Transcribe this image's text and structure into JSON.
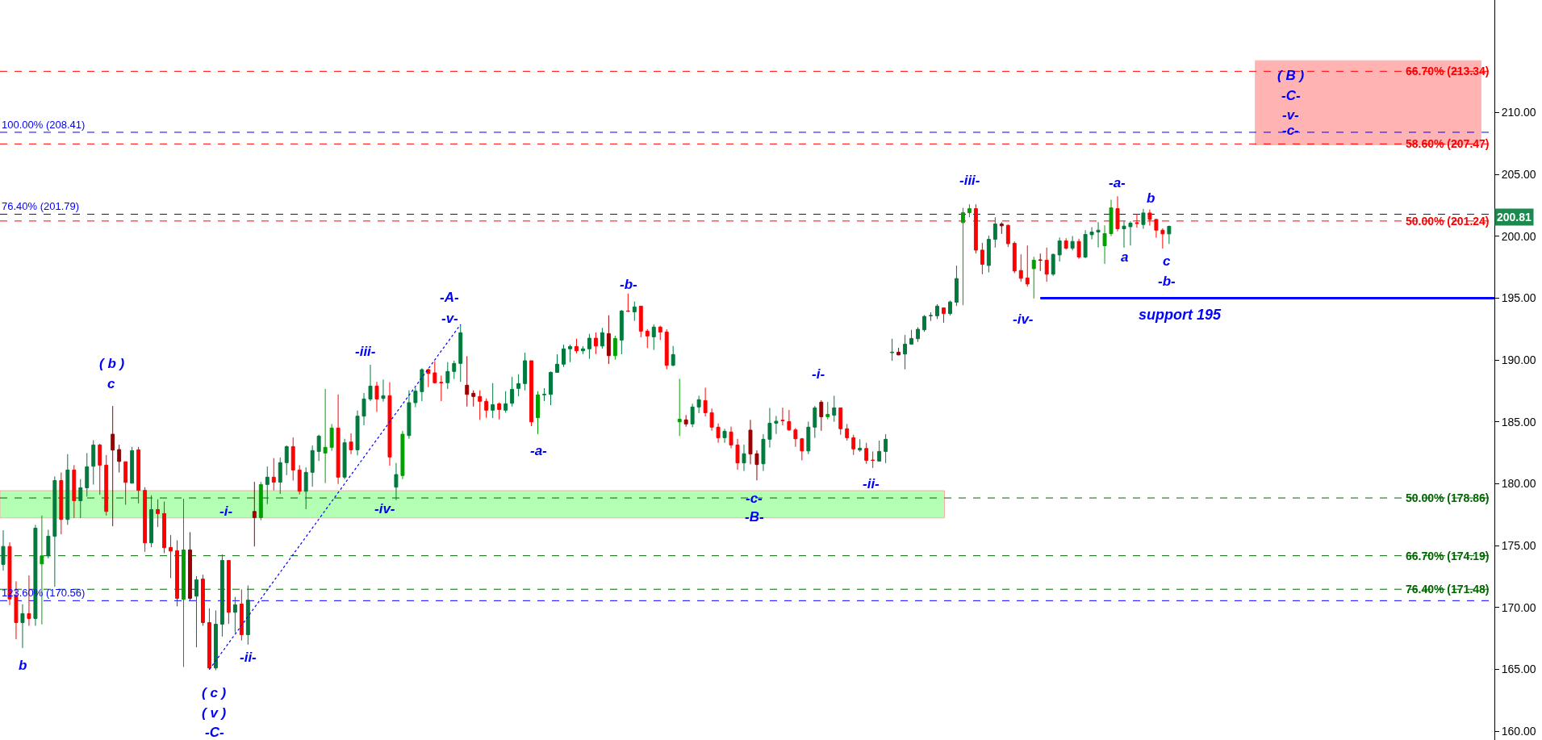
{
  "chart_data": {
    "type": "candlestick",
    "categories": [
      null,
      null,
      null,
      null,
      null,
      null,
      null,
      null,
      null,
      null,
      null,
      null,
      null,
      null,
      null,
      null,
      null,
      null,
      null,
      null,
      null,
      null,
      null,
      null,
      null,
      null,
      null,
      null,
      null,
      null,
      null,
      null,
      null,
      null,
      null,
      null,
      null,
      null,
      null,
      null,
      null,
      null,
      null,
      null,
      null,
      null,
      null,
      null,
      null,
      null,
      null,
      null,
      null,
      null,
      null,
      null,
      null,
      null,
      null,
      null,
      null,
      null,
      null,
      null,
      null,
      null,
      null,
      null,
      null,
      null,
      null,
      null,
      null,
      null,
      null,
      null,
      null,
      null,
      null,
      null,
      null,
      null,
      null,
      null,
      null,
      null,
      null,
      null,
      null,
      null,
      null,
      null,
      null,
      null,
      null,
      null,
      null,
      null,
      null,
      null,
      null,
      null,
      null,
      null,
      null,
      null,
      null,
      null,
      null,
      null,
      null,
      null,
      null,
      null,
      null,
      null,
      null,
      null,
      null,
      null,
      null,
      null,
      null,
      null,
      null,
      null,
      null,
      null,
      null,
      null,
      null,
      null,
      null,
      null,
      null,
      null,
      null,
      null,
      null,
      null,
      null,
      null,
      null,
      null,
      null,
      null,
      null,
      null,
      null,
      null,
      null,
      null,
      null,
      null,
      null,
      null,
      null,
      null,
      null,
      null,
      null,
      null,
      null,
      null,
      null,
      null,
      null,
      null,
      null,
      null,
      null,
      null,
      null,
      null,
      null,
      null,
      null,
      null,
      null,
      null,
      null,
      null,
      null,
      null,
      null,
      null,
      null,
      null,
      null,
      null,
      null,
      null,
      null,
      null,
      null,
      null,
      null,
      null,
      null,
      null,
      null,
      null,
      null,
      null,
      null,
      null,
      null,
      null,
      null,
      null,
      null,
      null,
      null,
      null,
      null,
      null,
      null,
      null,
      null,
      null,
      null,
      null,
      null,
      null,
      null,
      null,
      null,
      null,
      null,
      null,
      null,
      null
    ],
    "ohlc": [
      [
        173.49,
        176.25,
        172.99,
        174.94
      ],
      [
        174.94,
        175.27,
        170.2,
        170.7
      ],
      [
        170.97,
        172.12,
        167.44,
        168.79
      ],
      [
        168.79,
        170.27,
        166.73,
        169.51
      ],
      [
        169.51,
        172.6,
        168.53,
        169.12
      ],
      [
        169.12,
        176.68,
        168.53,
        176.42
      ],
      [
        173.53,
        177.44,
        168.64,
        174.18
      ],
      [
        174.18,
        176.29,
        173.97,
        175.77
      ],
      [
        175.77,
        180.6,
        171.68,
        180.27
      ],
      [
        180.27,
        180.92,
        175.92,
        177.12
      ],
      [
        177.12,
        182.4,
        176.68,
        181.12
      ],
      [
        181.12,
        181.51,
        177.23,
        178.64
      ],
      [
        178.64,
        180.38,
        177.23,
        179.68
      ],
      [
        179.68,
        182.49,
        178.97,
        181.38
      ],
      [
        181.42,
        183.53,
        179.94,
        183.14
      ],
      [
        183.14,
        183.25,
        179.12,
        181.51
      ],
      [
        181.51,
        182.33,
        177.44,
        177.77
      ],
      [
        184.01,
        186.29,
        176.57,
        182.73
      ],
      [
        182.77,
        183.16,
        180.92,
        181.81
      ],
      [
        181.79,
        181.79,
        178.31,
        180.12
      ],
      [
        180.05,
        182.99,
        180.05,
        182.68
      ],
      [
        182.75,
        182.99,
        178.42,
        179.47
      ],
      [
        179.47,
        179.73,
        174.51,
        175.23
      ],
      [
        175.23,
        179.07,
        174.88,
        177.92
      ],
      [
        177.92,
        178.75,
        176.51,
        177.6
      ],
      [
        177.6,
        178.57,
        174.4,
        174.84
      ],
      [
        174.86,
        175.86,
        172.38,
        174.57
      ],
      [
        174.6,
        175.44,
        170.1,
        170.75
      ],
      [
        170.66,
        178.79,
        165.2,
        174.66
      ],
      [
        174.66,
        176.1,
        170.6,
        170.75
      ],
      [
        170.92,
        172.55,
        166.79,
        172.25
      ],
      [
        172.31,
        172.66,
        168.53,
        168.79
      ],
      [
        168.79,
        169.94,
        164.99,
        165.12
      ],
      [
        165.12,
        169.77,
        164.94,
        168.66
      ],
      [
        168.66,
        174.29,
        167.66,
        173.81
      ],
      [
        173.81,
        173.81,
        168.68,
        169.62
      ],
      [
        169.62,
        170.86,
        167.99,
        170.23
      ],
      [
        170.29,
        171.47,
        167.34,
        167.81
      ],
      [
        167.81,
        171.79,
        167.01,
        170.6
      ],
      [
        177.77,
        180.16,
        174.94,
        177.27
      ],
      [
        177.27,
        180.16,
        177.05,
        179.94
      ],
      [
        179.95,
        181.4,
        178.36,
        180.54
      ],
      [
        180.54,
        182.08,
        179.47,
        180.14
      ],
      [
        180.14,
        182.12,
        179.19,
        181.71
      ],
      [
        181.71,
        183.1,
        180.71,
        183.01
      ],
      [
        183.01,
        183.75,
        180.27,
        181.12
      ],
      [
        181.12,
        181.51,
        179.14,
        179.4
      ],
      [
        179.4,
        181.32,
        177.95,
        180.93
      ],
      [
        180.93,
        183.1,
        179.77,
        182.69
      ],
      [
        182.62,
        183.97,
        181.84,
        183.86
      ],
      [
        182.49,
        187.67,
        180.06,
        182.95
      ],
      [
        182.95,
        184.84,
        182.67,
        184.51
      ],
      [
        184.51,
        187.23,
        179.99,
        180.54
      ],
      [
        180.54,
        183.64,
        180.38,
        183.32
      ],
      [
        183.38,
        184.08,
        182.4,
        182.75
      ],
      [
        182.75,
        185.93,
        182.3,
        185.47
      ],
      [
        185.47,
        187.34,
        184.73,
        186.86
      ],
      [
        186.86,
        189.62,
        186.69,
        187.9
      ],
      [
        187.9,
        188.25,
        185.82,
        186.86
      ],
      [
        186.9,
        188.43,
        186.64,
        187.12
      ],
      [
        187.12,
        188.21,
        181.47,
        182.17
      ],
      [
        179.73,
        181.69,
        178.69,
        180.75
      ],
      [
        180.67,
        184.29,
        180.38,
        184.01
      ],
      [
        183.9,
        187.56,
        183.64,
        186.56
      ],
      [
        186.56,
        187.77,
        186.19,
        187.49
      ],
      [
        187.45,
        189.34,
        186.69,
        189.23
      ],
      [
        189.23,
        189.3,
        187.82,
        188.93
      ],
      [
        188.97,
        189.9,
        188.1,
        188.17
      ],
      [
        188.2,
        188.75,
        186.69,
        188.17
      ],
      [
        188.17,
        189.84,
        187.67,
        189.08
      ],
      [
        189.08,
        189.95,
        188.47,
        189.73
      ],
      [
        189.73,
        192.88,
        188.25,
        192.21
      ],
      [
        187.97,
        190.32,
        186.25,
        187.23
      ],
      [
        187.32,
        187.56,
        186.25,
        187.06
      ],
      [
        187.06,
        187.56,
        185.17,
        186.67
      ],
      [
        186.67,
        186.9,
        185.34,
        185.95
      ],
      [
        185.95,
        188.14,
        185.32,
        186.4
      ],
      [
        186.47,
        186.58,
        185.21,
        186.01
      ],
      [
        185.95,
        187.49,
        185.75,
        186.47
      ],
      [
        186.51,
        188.64,
        186.25,
        187.64
      ],
      [
        187.71,
        188.86,
        187.08,
        188.1
      ],
      [
        188.1,
        190.6,
        187.56,
        189.95
      ],
      [
        189.95,
        189.95,
        184.67,
        185.01
      ],
      [
        185.34,
        187.49,
        184.01,
        187.19
      ],
      [
        187.2,
        187.73,
        186.69,
        187.23
      ],
      [
        187.23,
        189.08,
        186.36,
        189.01
      ],
      [
        189.01,
        190.47,
        188.97,
        189.67
      ],
      [
        189.67,
        191.25,
        189.45,
        190.91
      ],
      [
        190.91,
        191.25,
        189.84,
        191.1
      ],
      [
        191.1,
        191.73,
        190.54,
        190.75
      ],
      [
        190.75,
        191.12,
        190.49,
        190.91
      ],
      [
        190.91,
        192.12,
        190.1,
        191.77
      ],
      [
        191.77,
        192.23,
        190.49,
        191.14
      ],
      [
        191.14,
        192.6,
        190.93,
        192.21
      ],
      [
        192.14,
        193.62,
        189.69,
        190.36
      ],
      [
        190.36,
        191.97,
        190.04,
        191.75
      ],
      [
        191.62,
        194.04,
        190.47,
        193.97
      ],
      [
        193.97,
        195.38,
        193.9,
        193.95
      ],
      [
        193.9,
        194.73,
        193.17,
        194.3
      ],
      [
        194.36,
        194.36,
        191.84,
        192.34
      ],
      [
        192.34,
        192.51,
        190.97,
        191.95
      ],
      [
        191.88,
        192.88,
        190.82,
        192.67
      ],
      [
        192.67,
        192.78,
        191.62,
        192.27
      ],
      [
        192.27,
        192.49,
        189.25,
        189.58
      ],
      [
        189.58,
        191.14,
        189.51,
        190.45
      ],
      [
        185.01,
        188.49,
        183.86,
        185.23
      ],
      [
        185.17,
        185.56,
        184.62,
        184.84
      ],
      [
        184.84,
        186.47,
        184.58,
        186.21
      ],
      [
        186.21,
        187.12,
        185.71,
        186.8
      ],
      [
        186.73,
        187.77,
        185.45,
        185.75
      ],
      [
        185.75,
        186.08,
        184.3,
        184.58
      ],
      [
        184.58,
        184.88,
        183.32,
        183.73
      ],
      [
        183.73,
        184.45,
        183.32,
        184.25
      ],
      [
        184.19,
        184.62,
        182.88,
        183.14
      ],
      [
        183.14,
        183.64,
        181.14,
        181.69
      ],
      [
        181.69,
        183.17,
        181.04,
        182.43
      ],
      [
        184.34,
        185.17,
        181.58,
        182.41
      ],
      [
        182.43,
        182.71,
        180.28,
        181.56
      ],
      [
        181.62,
        184.01,
        181.04,
        183.6
      ],
      [
        183.6,
        186.14,
        182.93,
        184.9
      ],
      [
        184.9,
        185.49,
        184.03,
        185.06
      ],
      [
        185.14,
        186.16,
        184.73,
        185.1
      ],
      [
        185.03,
        185.97,
        184.29,
        184.36
      ],
      [
        184.36,
        184.51,
        182.99,
        183.64
      ],
      [
        183.64,
        183.71,
        181.9,
        182.66
      ],
      [
        182.66,
        185.03,
        182.4,
        184.58
      ],
      [
        184.58,
        186.29,
        183.71,
        186.14
      ],
      [
        186.6,
        186.75,
        184.29,
        185.42
      ],
      [
        185.42,
        186.62,
        185.21,
        185.62
      ],
      [
        185.55,
        187.12,
        185.01,
        186.14
      ],
      [
        186.14,
        186.14,
        183.97,
        184.45
      ],
      [
        184.45,
        184.84,
        183.49,
        183.73
      ],
      [
        183.73,
        183.97,
        182.34,
        182.82
      ],
      [
        182.73,
        183.6,
        182.6,
        182.88
      ],
      [
        182.86,
        183.32,
        181.62,
        181.9
      ],
      [
        181.92,
        182.62,
        181.29,
        181.9
      ],
      [
        181.84,
        183.49,
        181.8,
        182.62
      ],
      [
        182.62,
        184.01,
        181.68,
        183.6
      ],
      [
        190.6,
        191.73,
        189.94,
        190.64
      ],
      [
        190.64,
        190.99,
        190.38,
        190.42
      ],
      [
        190.49,
        192.03,
        189.25,
        191.29
      ],
      [
        191.29,
        192.45,
        191.25,
        191.75
      ],
      [
        191.73,
        192.66,
        191.47,
        192.49
      ],
      [
        192.45,
        193.64,
        192.29,
        193.53
      ],
      [
        193.58,
        193.86,
        193.16,
        193.6
      ],
      [
        193.58,
        194.51,
        193.32,
        194.36
      ],
      [
        194.22,
        194.26,
        193.02,
        193.76
      ],
      [
        193.76,
        194.81,
        193.61,
        194.7
      ],
      [
        194.68,
        197.63,
        194.37,
        196.59
      ],
      [
        201.11,
        202.3,
        194.44,
        201.91
      ],
      [
        201.91,
        202.59,
        201.54,
        202.24
      ],
      [
        202.24,
        202.59,
        198.61,
        198.89
      ],
      [
        198.89,
        199.48,
        196.94,
        197.74
      ],
      [
        197.65,
        200.07,
        197.09,
        199.76
      ],
      [
        199.76,
        201.54,
        199.09,
        201.0
      ],
      [
        201.0,
        201.15,
        200.2,
        200.85
      ],
      [
        200.89,
        200.96,
        199.15,
        199.41
      ],
      [
        199.44,
        199.59,
        197.02,
        197.2
      ],
      [
        197.24,
        198.54,
        196.33,
        196.61
      ],
      [
        196.63,
        199.26,
        195.94,
        196.15
      ],
      [
        197.39,
        198.35,
        194.98,
        198.07
      ],
      [
        198.1,
        198.61,
        197.2,
        198.07
      ],
      [
        198.07,
        199.09,
        196.33,
        196.94
      ],
      [
        196.94,
        198.61,
        196.81,
        198.54
      ],
      [
        198.5,
        199.91,
        197.96,
        199.63
      ],
      [
        199.63,
        199.85,
        198.93,
        199.04
      ],
      [
        199.04,
        200.02,
        198.87,
        199.59
      ],
      [
        199.59,
        199.81,
        198.18,
        198.33
      ],
      [
        198.33,
        200.5,
        198.24,
        200.15
      ],
      [
        200.13,
        200.74,
        199.76,
        200.35
      ],
      [
        200.35,
        201.15,
        199.11,
        200.5
      ],
      [
        199.24,
        200.89,
        197.78,
        200.22
      ],
      [
        200.22,
        202.96,
        200.02,
        202.3
      ],
      [
        202.24,
        203.24,
        200.41,
        200.61
      ],
      [
        200.61,
        201.22,
        199.09,
        200.83
      ],
      [
        200.78,
        201.22,
        199.26,
        201.07
      ],
      [
        201.1,
        201.8,
        200.7,
        201.05
      ],
      [
        200.96,
        202.22,
        200.61,
        201.89
      ],
      [
        201.89,
        202.17,
        200.87,
        201.37
      ],
      [
        201.37,
        201.41,
        199.89,
        200.5
      ],
      [
        200.5,
        200.65,
        199.02,
        200.2
      ],
      [
        200.2,
        200.87,
        199.39,
        200.81
      ],
      null,
      null,
      null,
      null,
      null,
      null,
      null,
      null,
      null,
      null,
      null,
      null,
      null,
      null,
      null,
      null,
      null,
      null,
      null,
      null,
      null,
      null,
      null,
      null,
      null,
      null,
      null,
      null,
      null,
      null,
      null,
      null,
      null,
      null,
      null,
      null,
      null,
      null,
      null,
      null,
      null,
      null,
      null,
      null,
      null,
      null,
      null,
      null,
      null,
      null
    ],
    "colors": [
      "#007a3d",
      "#ff0000",
      "#ff0000",
      "#007a3d",
      "#ff0000",
      "#007a3d",
      "#00a000",
      "#007a3d",
      "#007a3d",
      "#ff0000",
      "#007a3d",
      "#ff0000",
      "#007a3d",
      "#007a3d",
      "#007a3d",
      "#ff0000",
      "#ff0000",
      "#990000",
      "#990000",
      "#ff0000",
      "#007a3d",
      "#ff0000",
      "#ff0000",
      "#007a3d",
      "#ff0000",
      "#ff0000",
      "#ff0000",
      "#ff0000",
      "#00a000",
      "#990000",
      "#007a3d",
      "#ff0000",
      "#ff0000",
      "#007a3d",
      "#007a3d",
      "#ff0000",
      "#007a3d",
      "#ff0000",
      "#007a3d",
      "#990000",
      "#00a000",
      "#007a3d",
      "#ff0000",
      "#007a3d",
      "#007a3d",
      "#ff0000",
      "#ff0000",
      "#007a3d",
      "#007a3d",
      "#007a3d",
      "#00a000",
      "#00a000",
      "#ff0000",
      "#007a3d",
      "#ff0000",
      "#007a3d",
      "#007a3d",
      "#007a3d",
      "#ff0000",
      "#007a3d",
      "#ff0000",
      "#007a3d",
      "#00a000",
      "#007a3d",
      "#007a3d",
      "#007a3d",
      "#ff0000",
      "#ff0000",
      "#ff0000",
      "#007a3d",
      "#007a3d",
      "#007a3d",
      "#990000",
      "#990000",
      "#ff0000",
      "#ff0000",
      "#007a3d",
      "#ff0000",
      "#007a3d",
      "#007a3d",
      "#007a3d",
      "#007a3d",
      "#ff0000",
      "#00a000",
      "#007a3d",
      "#007a3d",
      "#007a3d",
      "#007a3d",
      "#007a3d",
      "#ff0000",
      "#007a3d",
      "#007a3d",
      "#ff0000",
      "#007a3d",
      "#990000",
      "#00a000",
      "#007a3d",
      "#ff0000",
      "#007a3d",
      "#ff0000",
      "#ff0000",
      "#007a3d",
      "#ff0000",
      "#ff0000",
      "#007a3d",
      "#00a000",
      "#990000",
      "#007a3d",
      "#007a3d",
      "#ff0000",
      "#ff0000",
      "#ff0000",
      "#007a3d",
      "#ff0000",
      "#ff0000",
      "#007a3d",
      "#990000",
      "#990000",
      "#007a3d",
      "#007a3d",
      "#007a3d",
      "#ff0000",
      "#ff0000",
      "#ff0000",
      "#ff0000",
      "#007a3d",
      "#007a3d",
      "#990000",
      "#00a000",
      "#007a3d",
      "#ff0000",
      "#ff0000",
      "#ff0000",
      "#007a3d",
      "#ff0000",
      "#ff0000",
      "#007a3d",
      "#007a3d",
      "#007a3d",
      "#990000",
      "#007a3d",
      "#007a3d",
      "#007a3d",
      "#007a3d",
      "#007a3d",
      "#007a3d",
      "#ff0000",
      "#007a3d",
      "#007a3d",
      "#00a000",
      "#00a000",
      "#ff0000",
      "#ff0000",
      "#007a3d",
      "#007a3d",
      "#990000",
      "#ff0000",
      "#ff0000",
      "#ff0000",
      "#ff0000",
      "#00a000",
      "#990000",
      "#ff0000",
      "#007a3d",
      "#007a3d",
      "#ff0000",
      "#007a3d",
      "#ff0000",
      "#007a3d",
      "#007a3d",
      "#007a3d",
      "#00a000",
      "#00a000",
      "#ff0000",
      "#007a3d",
      "#007a3d",
      "#ff0000",
      "#007a3d",
      "#ff0000",
      "#ff0000",
      "#ff0000",
      "#007a3d",
      null,
      null,
      null,
      null,
      null,
      null,
      null,
      null,
      null,
      null,
      null,
      null,
      null,
      null,
      null,
      null,
      null,
      null,
      null,
      null,
      null,
      null,
      null,
      null,
      null,
      null,
      null,
      null,
      null,
      null,
      null,
      null,
      null,
      null,
      null,
      null,
      null,
      null,
      null,
      null,
      null,
      null,
      null,
      null,
      null,
      null,
      null,
      null,
      null,
      null
    ],
    "series": [
      {
        "type": "line",
        "values": [
          null,
          null,
          null,
          null,
          null,
          null,
          null,
          null,
          null,
          null,
          null,
          null,
          null,
          null,
          null,
          null,
          null,
          null,
          null,
          null,
          null,
          null,
          null,
          null,
          null,
          null,
          null,
          null,
          null,
          null,
          null,
          null,
          164.99,
          null,
          null,
          null,
          null,
          null,
          null,
          null,
          null,
          null,
          null,
          null,
          null,
          null,
          null,
          null,
          null,
          null,
          null,
          null,
          null,
          null,
          null,
          null,
          null,
          null,
          null,
          null,
          null,
          null,
          null,
          null,
          null,
          null,
          null,
          null,
          null,
          null,
          null,
          192.88,
          null,
          null,
          null,
          null,
          null,
          null,
          null,
          null,
          null,
          null,
          null,
          null,
          null,
          null,
          null,
          null,
          null,
          null,
          null,
          null,
          null,
          null,
          null,
          null,
          null,
          null,
          null,
          null,
          null,
          null,
          null,
          null,
          null,
          null,
          null,
          null,
          null,
          null,
          null,
          null,
          null,
          null,
          null,
          null,
          null,
          null,
          null,
          null,
          null,
          null,
          null,
          null,
          null,
          null,
          null,
          null,
          null,
          null,
          null,
          null,
          null,
          null,
          null,
          null,
          null,
          null,
          null,
          null,
          null,
          null,
          null,
          null,
          null,
          null,
          null,
          null,
          null,
          null,
          null,
          null,
          null,
          null,
          null,
          null,
          null,
          null,
          null,
          null,
          null,
          null,
          null,
          null,
          null,
          null,
          null,
          null,
          null,
          null,
          null,
          null,
          null,
          null,
          null,
          null,
          null,
          null,
          null,
          null,
          null,
          null,
          null,
          null,
          null,
          null,
          null,
          null,
          null,
          null,
          null,
          null,
          null,
          null,
          null,
          null,
          null,
          null,
          null,
          null,
          null,
          null,
          null,
          null,
          null,
          null,
          null,
          null,
          null,
          null,
          null,
          null,
          null,
          null,
          null,
          null,
          null,
          null,
          null,
          null,
          null,
          null,
          null,
          null,
          null,
          null,
          null,
          null,
          null,
          null,
          null,
          null
        ],
        "color": "#0000ff",
        "line_style": "dotted"
      }
    ],
    "ylim": [
      159.3,
      219.1
    ],
    "yticks": [
      {
        "value": 160,
        "label": "160.00"
      },
      {
        "value": 165,
        "label": "165.00"
      },
      {
        "value": 170,
        "label": "170.00"
      },
      {
        "value": 175,
        "label": "175.00"
      },
      {
        "value": 180,
        "label": "180.00"
      },
      {
        "value": 185,
        "label": "185.00"
      },
      {
        "value": 190,
        "label": "190.00"
      },
      {
        "value": 195,
        "label": "195.00"
      },
      {
        "value": 200,
        "label": "200.00"
      },
      {
        "value": 205,
        "label": "205.00"
      },
      {
        "value": 210,
        "label": "210.00"
      }
    ],
    "tick_labels": "y",
    "ref_lines": [
      {
        "axis": "y",
        "value": 195,
        "label": "support 195",
        "color": "#0000ff",
        "line_style": "solid"
      },
      {
        "axis": "y",
        "value": 213.34,
        "label": "66.70% (213.34)",
        "color": "#ff0000",
        "line_style": "dashed"
      },
      {
        "axis": "y",
        "value": 207.47,
        "label": "58.60% (207.47)",
        "color": "#ff0000",
        "line_style": "dashed"
      },
      {
        "axis": "y",
        "value": 201.24,
        "label": "50.00% (201.24)",
        "color": "#ff0000",
        "line_style": "dashed"
      },
      {
        "axis": "y",
        "value": 178.86,
        "label": "50.00% (178.86)",
        "color": "#006600",
        "line_style": "dashed"
      },
      {
        "axis": "y",
        "value": 174.19,
        "label": "66.70% (174.19)",
        "color": "#006600",
        "line_style": "dashed"
      },
      {
        "axis": "y",
        "value": 171.48,
        "label": "76.40% (171.48)",
        "color": "#006600",
        "line_style": "dashed"
      },
      {
        "axis": "y",
        "value": 208.41,
        "label": "100.00% (208.41)",
        "color": "#0000ff",
        "line_style": "dashed"
      },
      {
        "axis": "y",
        "value": 201.79,
        "label": "76.40% (201.79)",
        "color": "#0000ff",
        "line_style": "dashed"
      },
      {
        "axis": "y",
        "value": 170.56,
        "label": "123.60% (170.56)",
        "color": "#0000ff",
        "line_style": "dashed"
      }
    ],
    "bands": [
      {
        "axis": "y",
        "from": 177.25,
        "to": 179.45,
        "color": "#b3ffb3"
      },
      {
        "axis": "y",
        "from": 207.4,
        "to": 214.2,
        "color": "#ffb3b3"
      }
    ],
    "annotations": [
      "( b )",
      "c",
      "b",
      "-i-",
      "-ii-",
      "( c )",
      "( v )",
      "-C-",
      "-iii-",
      "-iv-",
      "-A-",
      "-v-",
      "-a-",
      "-b-",
      "-c-",
      "-B-",
      "-i-",
      "-ii-",
      "-iii-",
      "-iv-",
      "-a-",
      "a",
      "b",
      "c",
      "-b-",
      "( B )",
      "-C-",
      "-v-",
      "-c-",
      "200.81"
    ]
  }
}
